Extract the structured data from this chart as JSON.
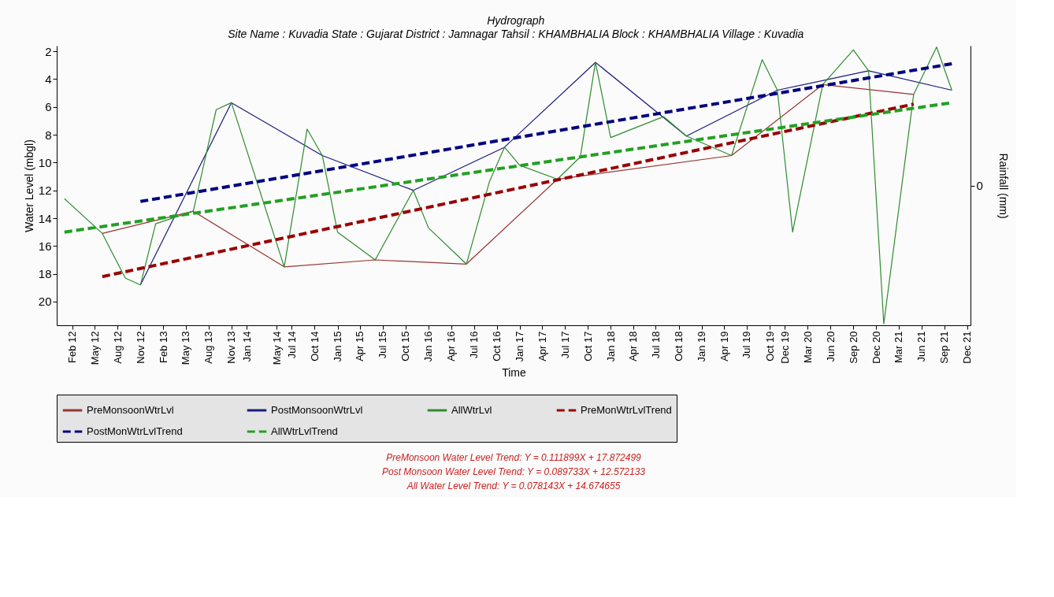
{
  "chart_data": {
    "type": "line",
    "title": "Hydrograph",
    "subtitle": "Site Name : Kuvadia State : Gujarat District : Jamnagar Tahsil : KHAMBHALIA Block : KHAMBHALIA Village : Kuvadia",
    "xlabel": "Time",
    "ylabel": "Water Level (mbgl)",
    "y2label": "Rainfall (mm)",
    "series": [
      {
        "name": "PreMonsoonWtrLvl",
        "color": "#993333",
        "line_style": "solid",
        "x": [
          "2012-06",
          "2013-06",
          "2014-06",
          "2015-06",
          "2016-06",
          "2017-06",
          "2019-05",
          "2020-05",
          "2021-05"
        ],
        "values": [
          15.1,
          13.5,
          17.5,
          17.0,
          17.3,
          11.2,
          9.5,
          4.4,
          5.1
        ]
      },
      {
        "name": "PostMonsoonWtrLvl",
        "color": "#1a1a80",
        "line_style": "solid",
        "x": [
          "2012-11",
          "2013-11",
          "2014-11",
          "2015-11",
          "2016-11",
          "2017-11",
          "2018-11",
          "2019-11",
          "2020-11",
          "2021-10"
        ],
        "values": [
          18.8,
          5.7,
          9.5,
          12.0,
          8.9,
          2.8,
          8.1,
          4.8,
          3.4,
          4.8
        ]
      },
      {
        "name": "AllWtrLvl",
        "color": "#2e8b2e",
        "line_style": "solid",
        "x": [
          "2012-01",
          "2012-06",
          "2012-09",
          "2012-11",
          "2013-01",
          "2013-06",
          "2013-09",
          "2013-11",
          "2014-06",
          "2014-09",
          "2014-11",
          "2015-01",
          "2015-06",
          "2015-11",
          "2016-01",
          "2016-06",
          "2016-09",
          "2016-11",
          "2017-01",
          "2017-06",
          "2017-09",
          "2017-11",
          "2018-01",
          "2018-08",
          "2018-11",
          "2019-05",
          "2019-09",
          "2019-11",
          "2020-01",
          "2020-05",
          "2020-09",
          "2020-11",
          "2021-01",
          "2021-05",
          "2021-08",
          "2021-10"
        ],
        "values": [
          12.6,
          15.1,
          18.3,
          18.8,
          14.4,
          13.5,
          6.2,
          5.7,
          17.5,
          7.6,
          9.5,
          15.0,
          17.0,
          12.0,
          14.7,
          17.3,
          11.4,
          8.9,
          10.2,
          11.2,
          9.6,
          2.8,
          8.2,
          6.7,
          8.1,
          9.5,
          2.6,
          4.8,
          15.0,
          4.4,
          1.9,
          3.4,
          21.6,
          5.1,
          1.7,
          4.8
        ]
      },
      {
        "name": "PreMonWtrLvlTrend",
        "color": "#990000",
        "line_style": "dashed",
        "x": [
          "2012-06",
          "2021-05"
        ],
        "values": [
          18.2,
          5.8
        ]
      },
      {
        "name": "PostMonWtrLvlTrend",
        "color": "#000080",
        "line_style": "dashed",
        "x": [
          "2012-11",
          "2021-10"
        ],
        "values": [
          12.8,
          2.9
        ]
      },
      {
        "name": "AllWtrLvlTrend",
        "color": "#22a022",
        "line_style": "dashed",
        "x": [
          "2012-01",
          "2021-10"
        ],
        "values": [
          15.0,
          5.7
        ]
      }
    ],
    "xlim": [
      "2011-12",
      "2021-12-15"
    ],
    "xticks": [
      {
        "value": "2012-02",
        "label": "Feb 12"
      },
      {
        "value": "2012-05",
        "label": "May 12"
      },
      {
        "value": "2012-08",
        "label": "Aug 12"
      },
      {
        "value": "2012-11",
        "label": "Nov 12"
      },
      {
        "value": "2013-02",
        "label": "Feb 13"
      },
      {
        "value": "2013-05",
        "label": "May 13"
      },
      {
        "value": "2013-08",
        "label": "Aug 13"
      },
      {
        "value": "2013-11",
        "label": "Nov 13"
      },
      {
        "value": "2014-01",
        "label": "Jan 14"
      },
      {
        "value": "2014-05",
        "label": "May 14"
      },
      {
        "value": "2014-07",
        "label": "Jul 14"
      },
      {
        "value": "2014-10",
        "label": "Oct 14"
      },
      {
        "value": "2015-01",
        "label": "Jan 15"
      },
      {
        "value": "2015-04",
        "label": "Apr 15"
      },
      {
        "value": "2015-07",
        "label": "Jul 15"
      },
      {
        "value": "2015-10",
        "label": "Oct 15"
      },
      {
        "value": "2016-01",
        "label": "Jan 16"
      },
      {
        "value": "2016-04",
        "label": "Apr 16"
      },
      {
        "value": "2016-07",
        "label": "Jul 16"
      },
      {
        "value": "2016-10",
        "label": "Oct 16"
      },
      {
        "value": "2017-01",
        "label": "Jan 17"
      },
      {
        "value": "2017-04",
        "label": "Apr 17"
      },
      {
        "value": "2017-07",
        "label": "Jul 17"
      },
      {
        "value": "2017-10",
        "label": "Oct 17"
      },
      {
        "value": "2018-01",
        "label": "Jan 18"
      },
      {
        "value": "2018-04",
        "label": "Apr 18"
      },
      {
        "value": "2018-07",
        "label": "Jul 18"
      },
      {
        "value": "2018-10",
        "label": "Oct 18"
      },
      {
        "value": "2019-01",
        "label": "Jan 19"
      },
      {
        "value": "2019-04",
        "label": "Apr 19"
      },
      {
        "value": "2019-07",
        "label": "Jul 19"
      },
      {
        "value": "2019-10",
        "label": "Oct 19"
      },
      {
        "value": "2019-12",
        "label": "Dec 19"
      },
      {
        "value": "2020-03",
        "label": "Mar 20"
      },
      {
        "value": "2020-06",
        "label": "Jun 20"
      },
      {
        "value": "2020-09",
        "label": "Sep 20"
      },
      {
        "value": "2020-12",
        "label": "Dec 20"
      },
      {
        "value": "2021-03",
        "label": "Mar 21"
      },
      {
        "value": "2021-06",
        "label": "Jun 21"
      },
      {
        "value": "2021-09",
        "label": "Sep 21"
      },
      {
        "value": "2021-12",
        "label": "Dec 21"
      }
    ],
    "ylim": [
      21.7,
      1.6
    ],
    "yticks": [
      2,
      4,
      6,
      8,
      10,
      12,
      14,
      16,
      18,
      20
    ],
    "grid": false,
    "legend": "bottom",
    "marker": "none",
    "annotations": [
      "0",
      "PreMonsoon Water Level Trend: Y = 0.111899X + 17.872499",
      "Post Monsoon Water Level Trend: Y = 0.089733X + 12.572133",
      "All Water Level Trend: Y = 0.078143X + 14.674655"
    ]
  }
}
